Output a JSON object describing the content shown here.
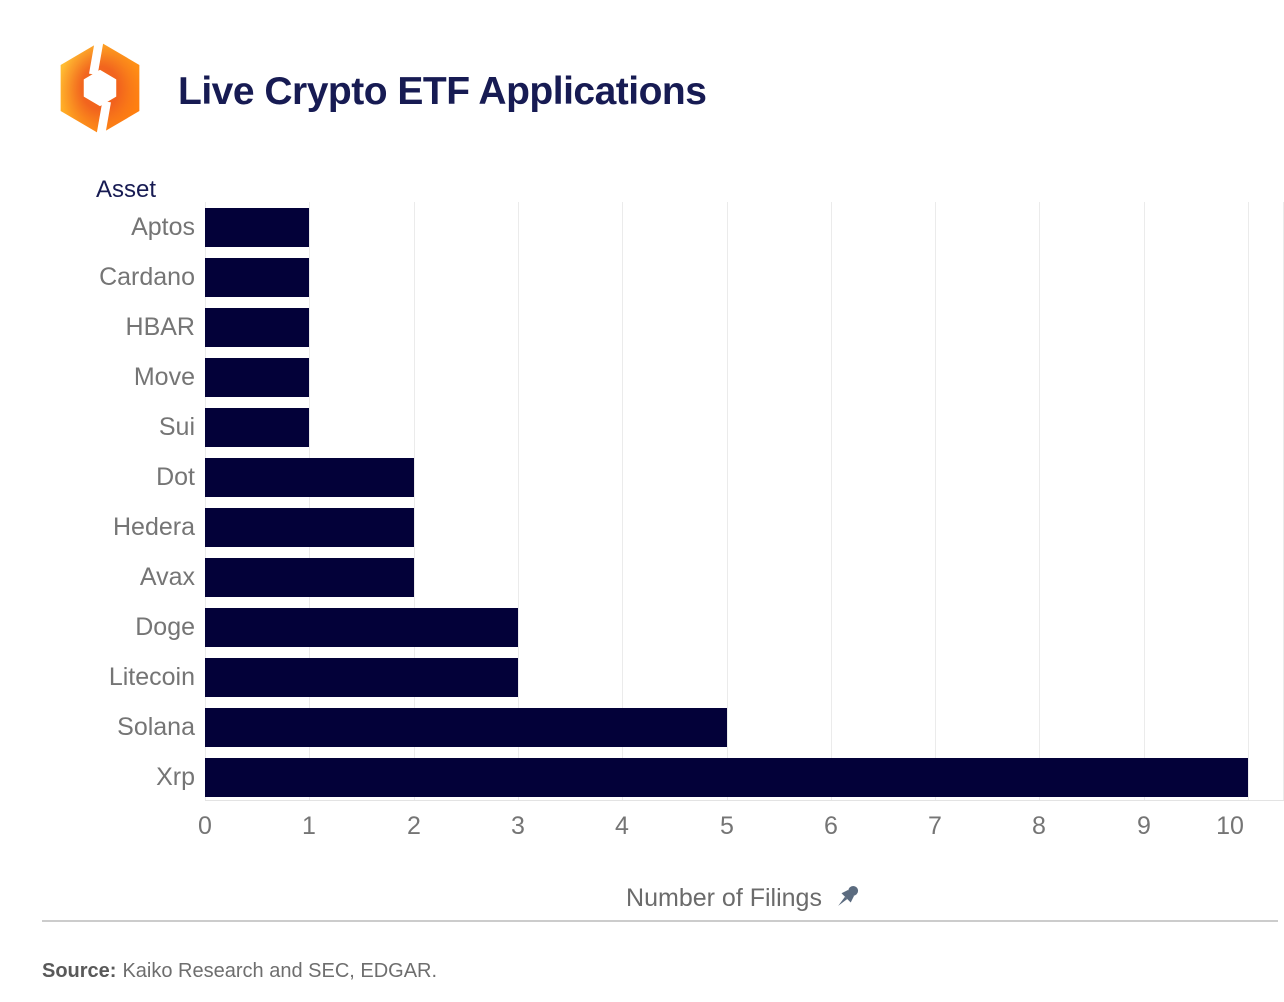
{
  "header": {
    "title": "Live Crypto ETF Applications"
  },
  "chart_data": {
    "type": "bar",
    "orientation": "horizontal",
    "title": "Live Crypto ETF Applications",
    "y_axis_title": "Asset",
    "x_axis_title": "Number of Filings",
    "categories": [
      "Aptos",
      "Cardano",
      "HBAR",
      "Move",
      "Sui",
      "Dot",
      "Hedera",
      "Avax",
      "Doge",
      "Litecoin",
      "Solana",
      "Xrp"
    ],
    "values": [
      1,
      1,
      1,
      1,
      1,
      2,
      2,
      2,
      3,
      3,
      5,
      10
    ],
    "x_ticks": [
      0,
      1,
      2,
      3,
      4,
      5,
      6,
      7,
      8,
      9,
      10
    ],
    "xlim": [
      0,
      10.34
    ],
    "grid": true,
    "legend": "none",
    "bar_color": "#030139",
    "label_color": "#757575",
    "axis_title_color": "#171b53"
  },
  "icons": {
    "pushpin": "pushpin-icon",
    "logo": "kaiko-logo",
    "pushpin_color": "#5b6b7f"
  },
  "footer": {
    "source_label": "Source:",
    "source_text": "Kaiko Research and SEC, EDGAR."
  }
}
